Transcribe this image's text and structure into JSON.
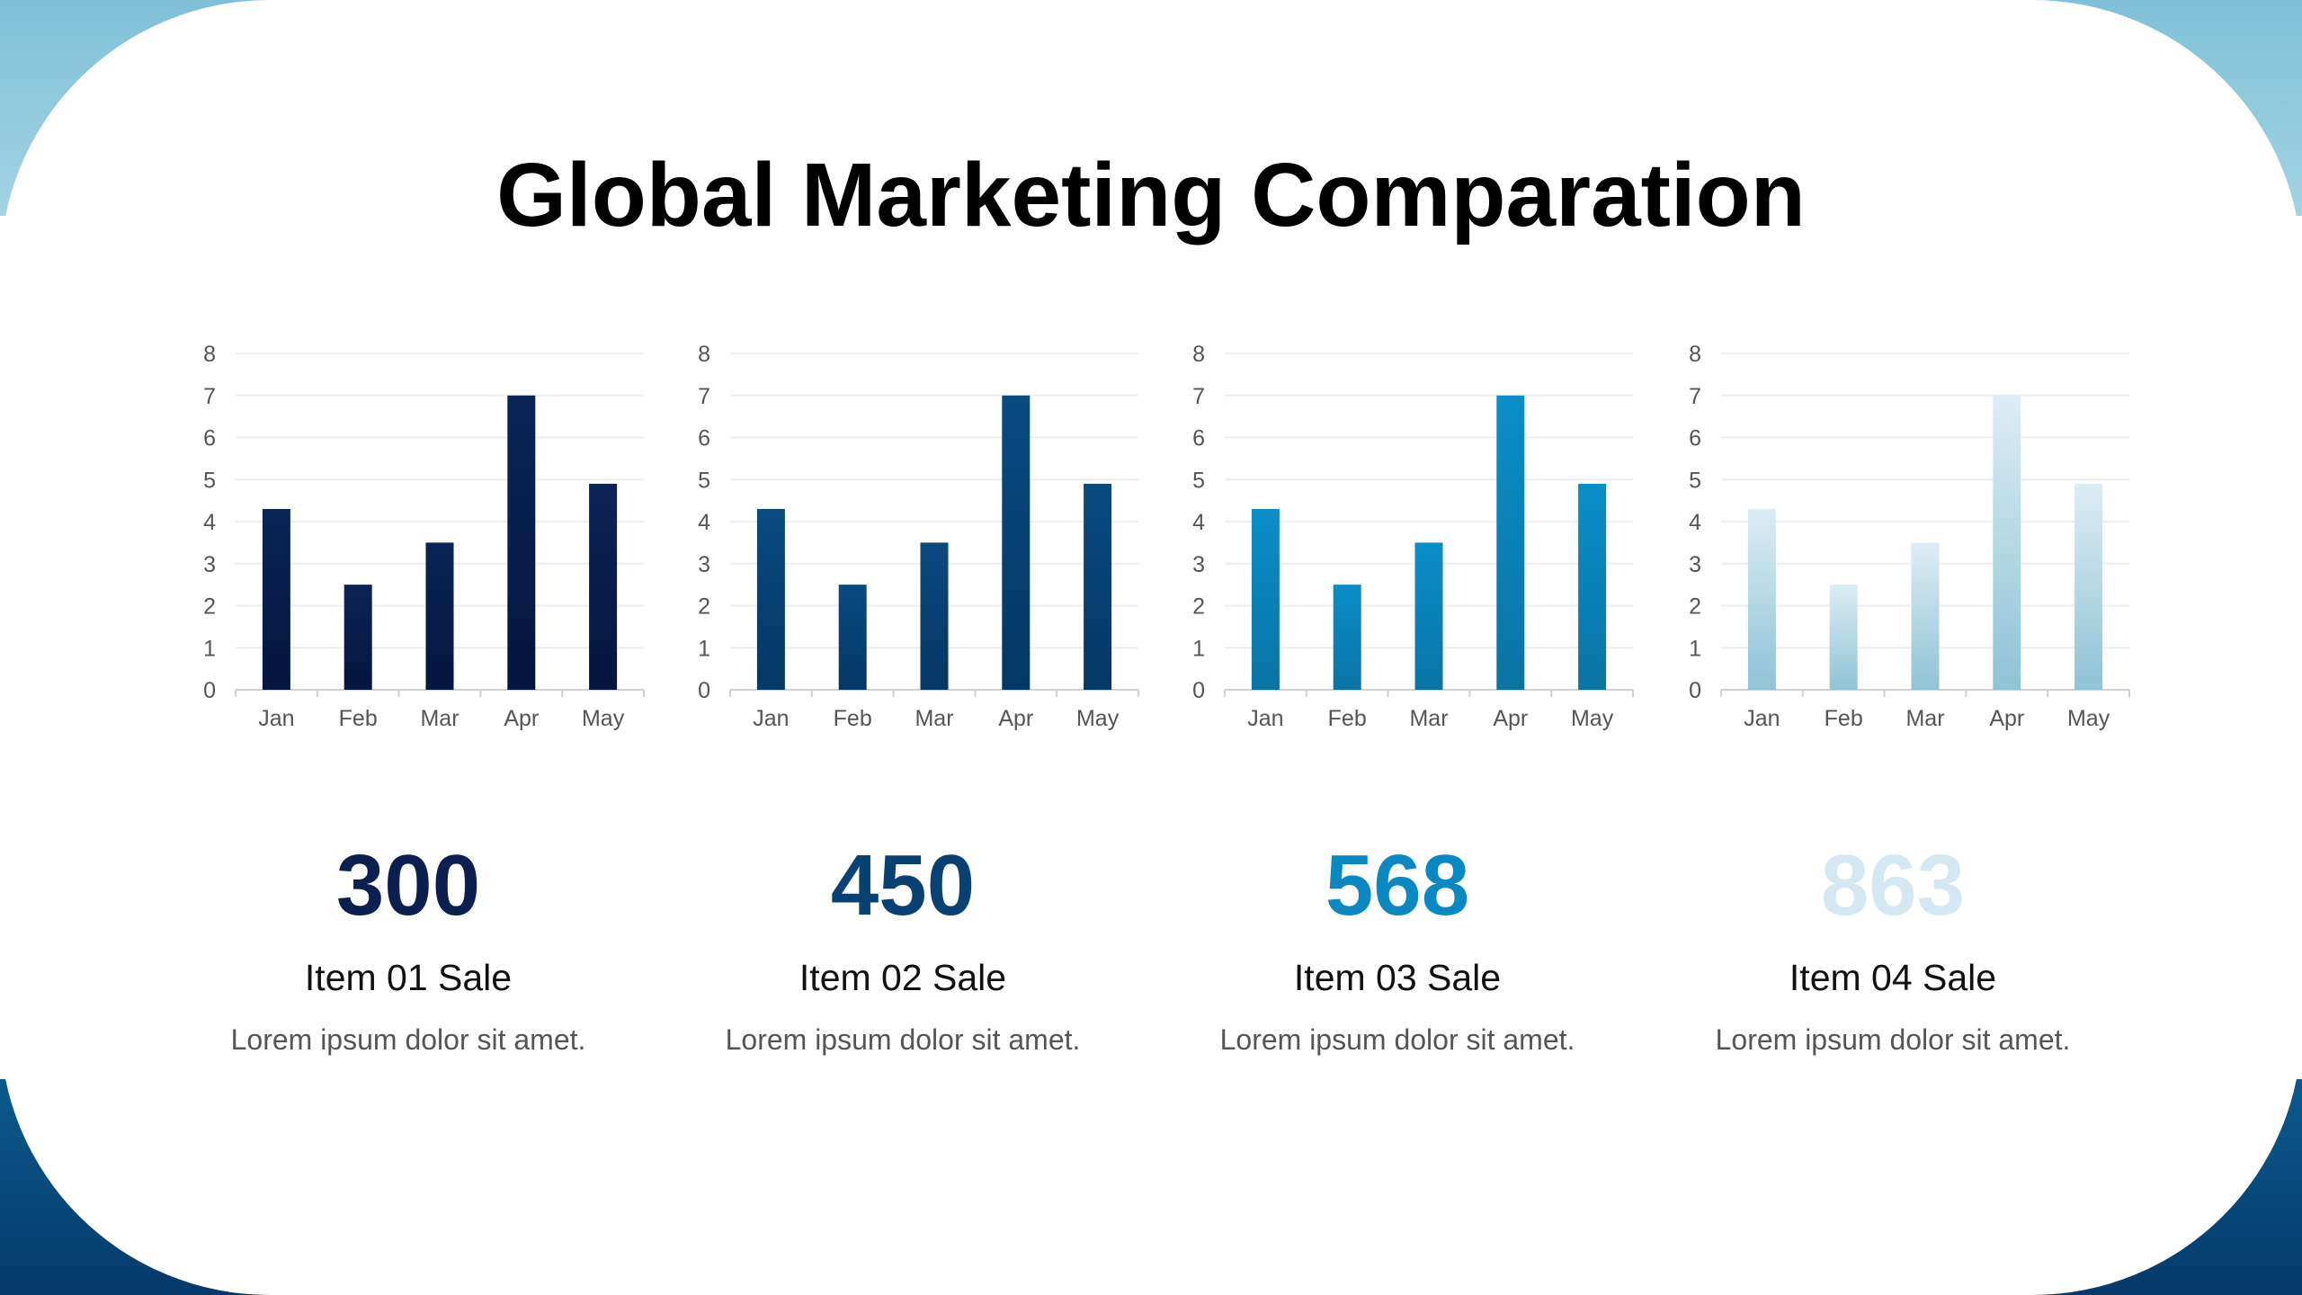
{
  "title": "Global Marketing Comparation",
  "chart_data": [
    {
      "type": "bar",
      "categories": [
        "Jan",
        "Feb",
        "Mar",
        "Apr",
        "May"
      ],
      "values": [
        4.3,
        2.5,
        3.5,
        7,
        4.9
      ],
      "ylim": [
        0,
        8
      ],
      "yticks": [
        0,
        1,
        2,
        3,
        4,
        5,
        6,
        7,
        8
      ],
      "colors": [
        "#0b2456",
        "#041640"
      ]
    },
    {
      "type": "bar",
      "categories": [
        "Jan",
        "Feb",
        "Mar",
        "Apr",
        "May"
      ],
      "values": [
        4.3,
        2.5,
        3.5,
        7,
        4.9
      ],
      "ylim": [
        0,
        8
      ],
      "yticks": [
        0,
        1,
        2,
        3,
        4,
        5,
        6,
        7,
        8
      ],
      "colors": [
        "#0a4a80",
        "#043764"
      ]
    },
    {
      "type": "bar",
      "categories": [
        "Jan",
        "Feb",
        "Mar",
        "Apr",
        "May"
      ],
      "values": [
        4.3,
        2.5,
        3.5,
        7,
        4.9
      ],
      "ylim": [
        0,
        8
      ],
      "yticks": [
        0,
        1,
        2,
        3,
        4,
        5,
        6,
        7,
        8
      ],
      "colors": [
        "#0a8ec9",
        "#0a74a4"
      ]
    },
    {
      "type": "bar",
      "categories": [
        "Jan",
        "Feb",
        "Mar",
        "Apr",
        "May"
      ],
      "values": [
        4.3,
        2.5,
        3.5,
        7,
        4.9
      ],
      "ylim": [
        0,
        8
      ],
      "yticks": [
        0,
        1,
        2,
        3,
        4,
        5,
        6,
        7,
        8
      ],
      "colors": [
        "#dcedf4",
        "#8fc3d6"
      ]
    }
  ],
  "stats": [
    {
      "value": "300",
      "label": "Item 01 Sale",
      "desc": "Lorem ipsum dolor sit amet.",
      "color": "#0b2050"
    },
    {
      "value": "450",
      "label": "Item 02 Sale",
      "desc": "Lorem ipsum dolor sit amet.",
      "color": "#0a4175"
    },
    {
      "value": "568",
      "label": "Item 03 Sale",
      "desc": "Lorem ipsum dolor sit amet.",
      "color": "#0a88c2"
    },
    {
      "value": "863",
      "label": "Item 04 Sale",
      "desc": "Lorem ipsum dolor sit amet.",
      "color": "#d4e8f1"
    }
  ]
}
